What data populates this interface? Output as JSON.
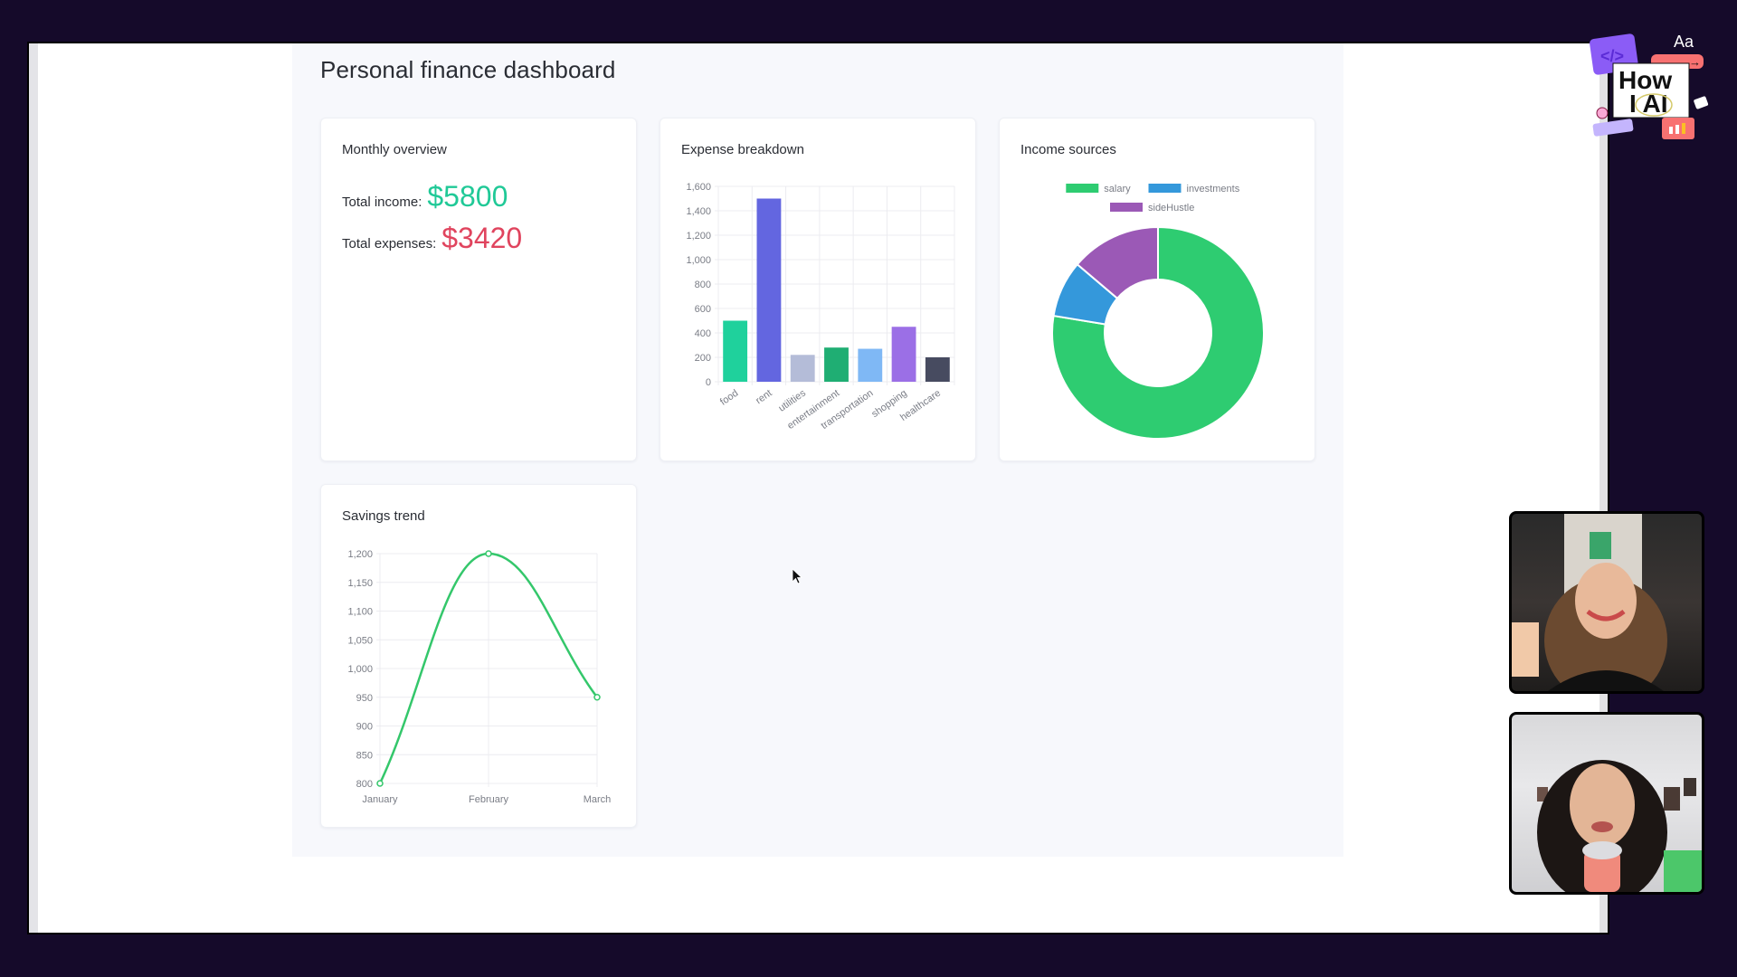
{
  "page": {
    "title": "Personal finance dashboard"
  },
  "overview": {
    "title": "Monthly overview",
    "income_label": "Total income:",
    "income_value": "$5800",
    "expense_label": "Total expenses:",
    "expense_value": "$3420",
    "colors": {
      "income": "#20c997",
      "expense": "#e0445e"
    }
  },
  "expenses_card": {
    "title": "Expense breakdown"
  },
  "income_card": {
    "title": "Income sources"
  },
  "savings_card": {
    "title": "Savings trend"
  },
  "overlay": {
    "logo_text_1": "How",
    "logo_text_2": "I AI",
    "logo_aa": "Aa"
  },
  "chart_data": [
    {
      "type": "bar",
      "title": "Expense breakdown",
      "categories": [
        "food",
        "rent",
        "utilities",
        "entertainment",
        "transportation",
        "shopping",
        "healthcare"
      ],
      "values": [
        500,
        1500,
        220,
        280,
        270,
        450,
        200
      ],
      "colors": [
        "#1fd19c",
        "#6366e0",
        "#b4bcd8",
        "#1fae73",
        "#7fb8f5",
        "#9b6fe6",
        "#474b60"
      ],
      "ylim": [
        0,
        1600
      ],
      "yticks": [
        0,
        200,
        400,
        600,
        800,
        1000,
        1200,
        1400,
        1600
      ],
      "ytick_labels": [
        "0",
        "200",
        "400",
        "600",
        "800",
        "1,000",
        "1,200",
        "1,400",
        "1,600"
      ],
      "grid": true,
      "xlabel": "",
      "ylabel": ""
    },
    {
      "type": "pie",
      "subtype": "doughnut",
      "title": "Income sources",
      "categories": [
        "salary",
        "investments",
        "sideHustle"
      ],
      "values": [
        4500,
        500,
        800
      ],
      "colors": [
        "#2ecc71",
        "#3498db",
        "#9b59b6"
      ],
      "legend_position": "top"
    },
    {
      "type": "line",
      "title": "Savings trend",
      "x": [
        "January",
        "February",
        "March"
      ],
      "values": [
        800,
        1200,
        950
      ],
      "color": "#34c76b",
      "ylim": [
        800,
        1200
      ],
      "yticks": [
        800,
        850,
        900,
        950,
        1000,
        1050,
        1100,
        1150,
        1200
      ],
      "ytick_labels": [
        "800",
        "850",
        "900",
        "950",
        "1,000",
        "1,050",
        "1,100",
        "1,150",
        "1,200"
      ],
      "grid": true,
      "smooth": true,
      "xlabel": "",
      "ylabel": ""
    }
  ]
}
